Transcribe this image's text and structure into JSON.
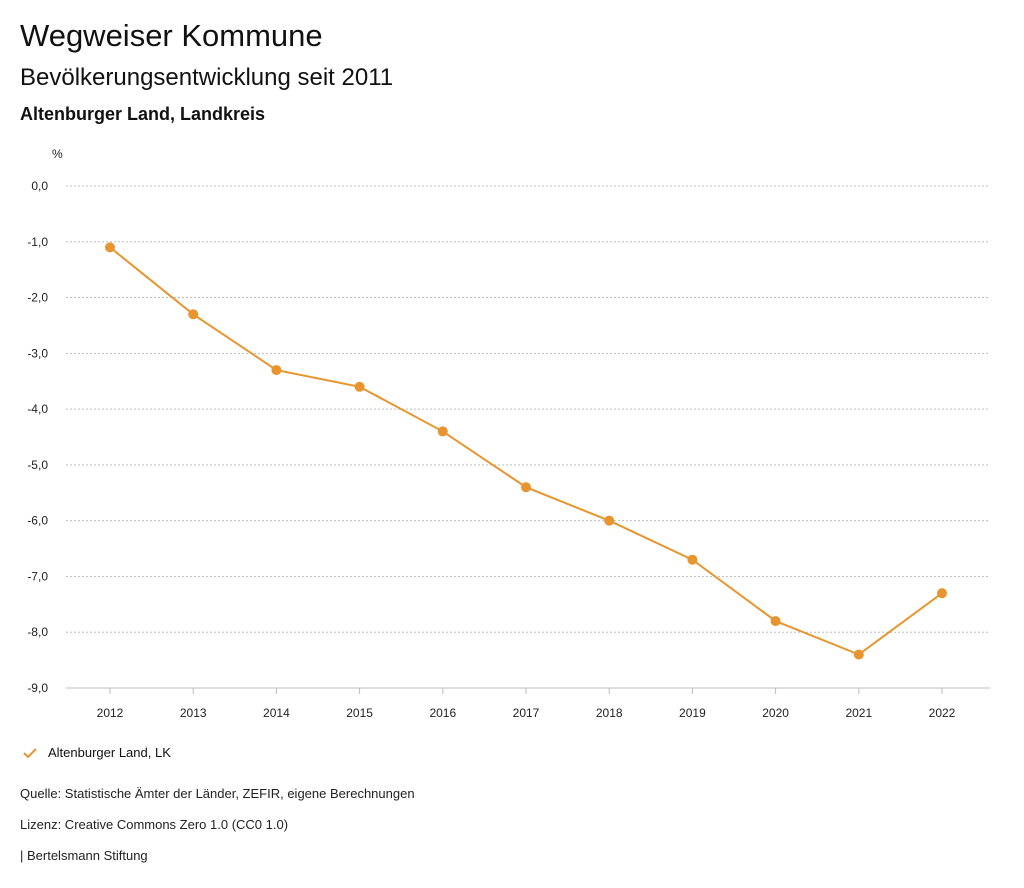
{
  "header": {
    "title": "Wegweiser Kommune",
    "subtitle": "Bevölkerungsentwicklung seit 2011",
    "region": "Altenburger Land, Landkreis"
  },
  "legend": {
    "label": "Altenburger Land, LK",
    "icon": "check-icon"
  },
  "footer": {
    "source": "Quelle: Statistische Ämter der Länder, ZEFIR, eigene Berechnungen",
    "license": "Lizenz: Creative Commons Zero 1.0 (CC0 1.0)",
    "publisher": "| Bertelsmann Stiftung"
  },
  "colors": {
    "series": "#e8952f",
    "grid": "#bdbdbd"
  },
  "chart_data": {
    "type": "line",
    "title": "Bevölkerungsentwicklung seit 2011",
    "ylabel": "%",
    "xlabel": "",
    "ylim": [
      -9,
      0
    ],
    "yticks": [
      0,
      -1,
      -2,
      -3,
      -4,
      -5,
      -6,
      -7,
      -8,
      -9
    ],
    "ytick_labels": [
      "0,0",
      "-1,0",
      "-2,0",
      "-3,0",
      "-4,0",
      "-5,0",
      "-6,0",
      "-7,0",
      "-8,0",
      "-9,0"
    ],
    "categories": [
      "2012",
      "2013",
      "2014",
      "2015",
      "2016",
      "2017",
      "2018",
      "2019",
      "2020",
      "2021",
      "2022"
    ],
    "series": [
      {
        "name": "Altenburger Land, LK",
        "values": [
          -1.1,
          -2.3,
          -3.3,
          -3.6,
          -4.4,
          -5.4,
          -6.0,
          -6.7,
          -7.8,
          -8.4,
          -7.3
        ]
      }
    ],
    "grid": true,
    "legend_position": "bottom-left"
  }
}
